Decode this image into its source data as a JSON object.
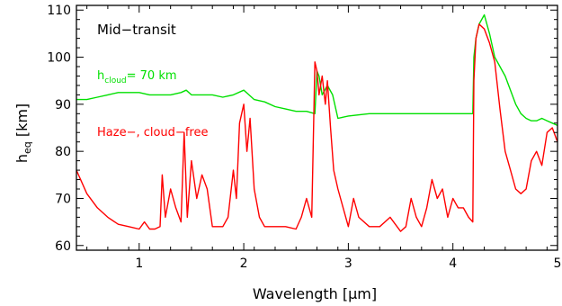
{
  "chart_data": {
    "type": "line",
    "xlabel_main": "Wavelength",
    "xlabel_unit": "[μm]",
    "ylabel_main": "h",
    "ylabel_sub": "eq",
    "ylabel_unit": "[km]",
    "xlim": [
      0.4,
      5.0
    ],
    "ylim": [
      59,
      111
    ],
    "x_ticks": [
      1,
      2,
      3,
      4,
      5
    ],
    "y_ticks": [
      60,
      70,
      80,
      90,
      100,
      110
    ],
    "grid": false,
    "annotations": {
      "panel_label": "Mid−transit",
      "cloud_label_main": "h",
      "cloud_label_sub": "cloud",
      "cloud_label_value": "= 70 km",
      "haze_label": "Haze−, cloud−free"
    },
    "series": [
      {
        "color": "#00e000",
        "x": [
          0.4,
          0.5,
          0.6,
          0.7,
          0.8,
          0.9,
          1.0,
          1.1,
          1.2,
          1.3,
          1.4,
          1.45,
          1.5,
          1.6,
          1.7,
          1.8,
          1.9,
          2.0,
          2.05,
          2.1,
          2.2,
          2.3,
          2.4,
          2.5,
          2.6,
          2.68,
          2.7,
          2.72,
          2.75,
          2.8,
          2.85,
          2.9,
          3.0,
          3.2,
          3.4,
          3.6,
          3.8,
          4.0,
          4.1,
          4.19,
          4.2,
          4.22,
          4.25,
          4.3,
          4.35,
          4.4,
          4.5,
          4.55,
          4.6,
          4.65,
          4.7,
          4.75,
          4.8,
          4.85,
          4.9,
          4.95,
          5.0
        ],
        "y": [
          91,
          91,
          91.5,
          92,
          92.5,
          92.5,
          92.5,
          92,
          92,
          92,
          92.5,
          93,
          92,
          92,
          92,
          91.5,
          92,
          93,
          92,
          91,
          90.5,
          89.5,
          89,
          88.5,
          88.5,
          88,
          97,
          96,
          92,
          94,
          92,
          87,
          87.5,
          88,
          88,
          88,
          88,
          88,
          88,
          88,
          100,
          104,
          107,
          109,
          105,
          100,
          96,
          93,
          90,
          88,
          87,
          86.5,
          86.5,
          87,
          86.5,
          86,
          85.5
        ]
      },
      {
        "color": "#ff0000",
        "x": [
          0.4,
          0.5,
          0.6,
          0.7,
          0.8,
          0.9,
          1.0,
          1.05,
          1.1,
          1.15,
          1.2,
          1.22,
          1.25,
          1.3,
          1.35,
          1.4,
          1.43,
          1.46,
          1.5,
          1.55,
          1.6,
          1.65,
          1.7,
          1.75,
          1.8,
          1.85,
          1.9,
          1.93,
          1.96,
          2.0,
          2.03,
          2.06,
          2.1,
          2.15,
          2.2,
          2.3,
          2.4,
          2.5,
          2.55,
          2.6,
          2.65,
          2.68,
          2.7,
          2.72,
          2.75,
          2.78,
          2.8,
          2.83,
          2.86,
          2.9,
          2.95,
          3.0,
          3.05,
          3.1,
          3.2,
          3.3,
          3.4,
          3.5,
          3.55,
          3.6,
          3.65,
          3.7,
          3.75,
          3.8,
          3.85,
          3.9,
          3.95,
          4.0,
          4.05,
          4.1,
          4.15,
          4.19,
          4.2,
          4.22,
          4.25,
          4.3,
          4.35,
          4.4,
          4.45,
          4.5,
          4.55,
          4.6,
          4.65,
          4.7,
          4.75,
          4.8,
          4.85,
          4.9,
          4.95,
          5.0
        ],
        "y": [
          76,
          71,
          68,
          66,
          64.5,
          64,
          63.5,
          65,
          63.5,
          63.5,
          64,
          75,
          66,
          72,
          68,
          65,
          84,
          66,
          78,
          70,
          75,
          72,
          64,
          64,
          64,
          66,
          76,
          70,
          86,
          90,
          80,
          87,
          72,
          66,
          64,
          64,
          64,
          63.5,
          66,
          70,
          66,
          99,
          97,
          92,
          96,
          90,
          95,
          85,
          76,
          72,
          68,
          64,
          70,
          66,
          64,
          64,
          66,
          63,
          64,
          70,
          66,
          64,
          68,
          74,
          70,
          72,
          66,
          70,
          68,
          68,
          66,
          65,
          95,
          104,
          107,
          106,
          103,
          99,
          89,
          80,
          76,
          72,
          71,
          72,
          78,
          80,
          77,
          84,
          85,
          82
        ]
      }
    ]
  }
}
